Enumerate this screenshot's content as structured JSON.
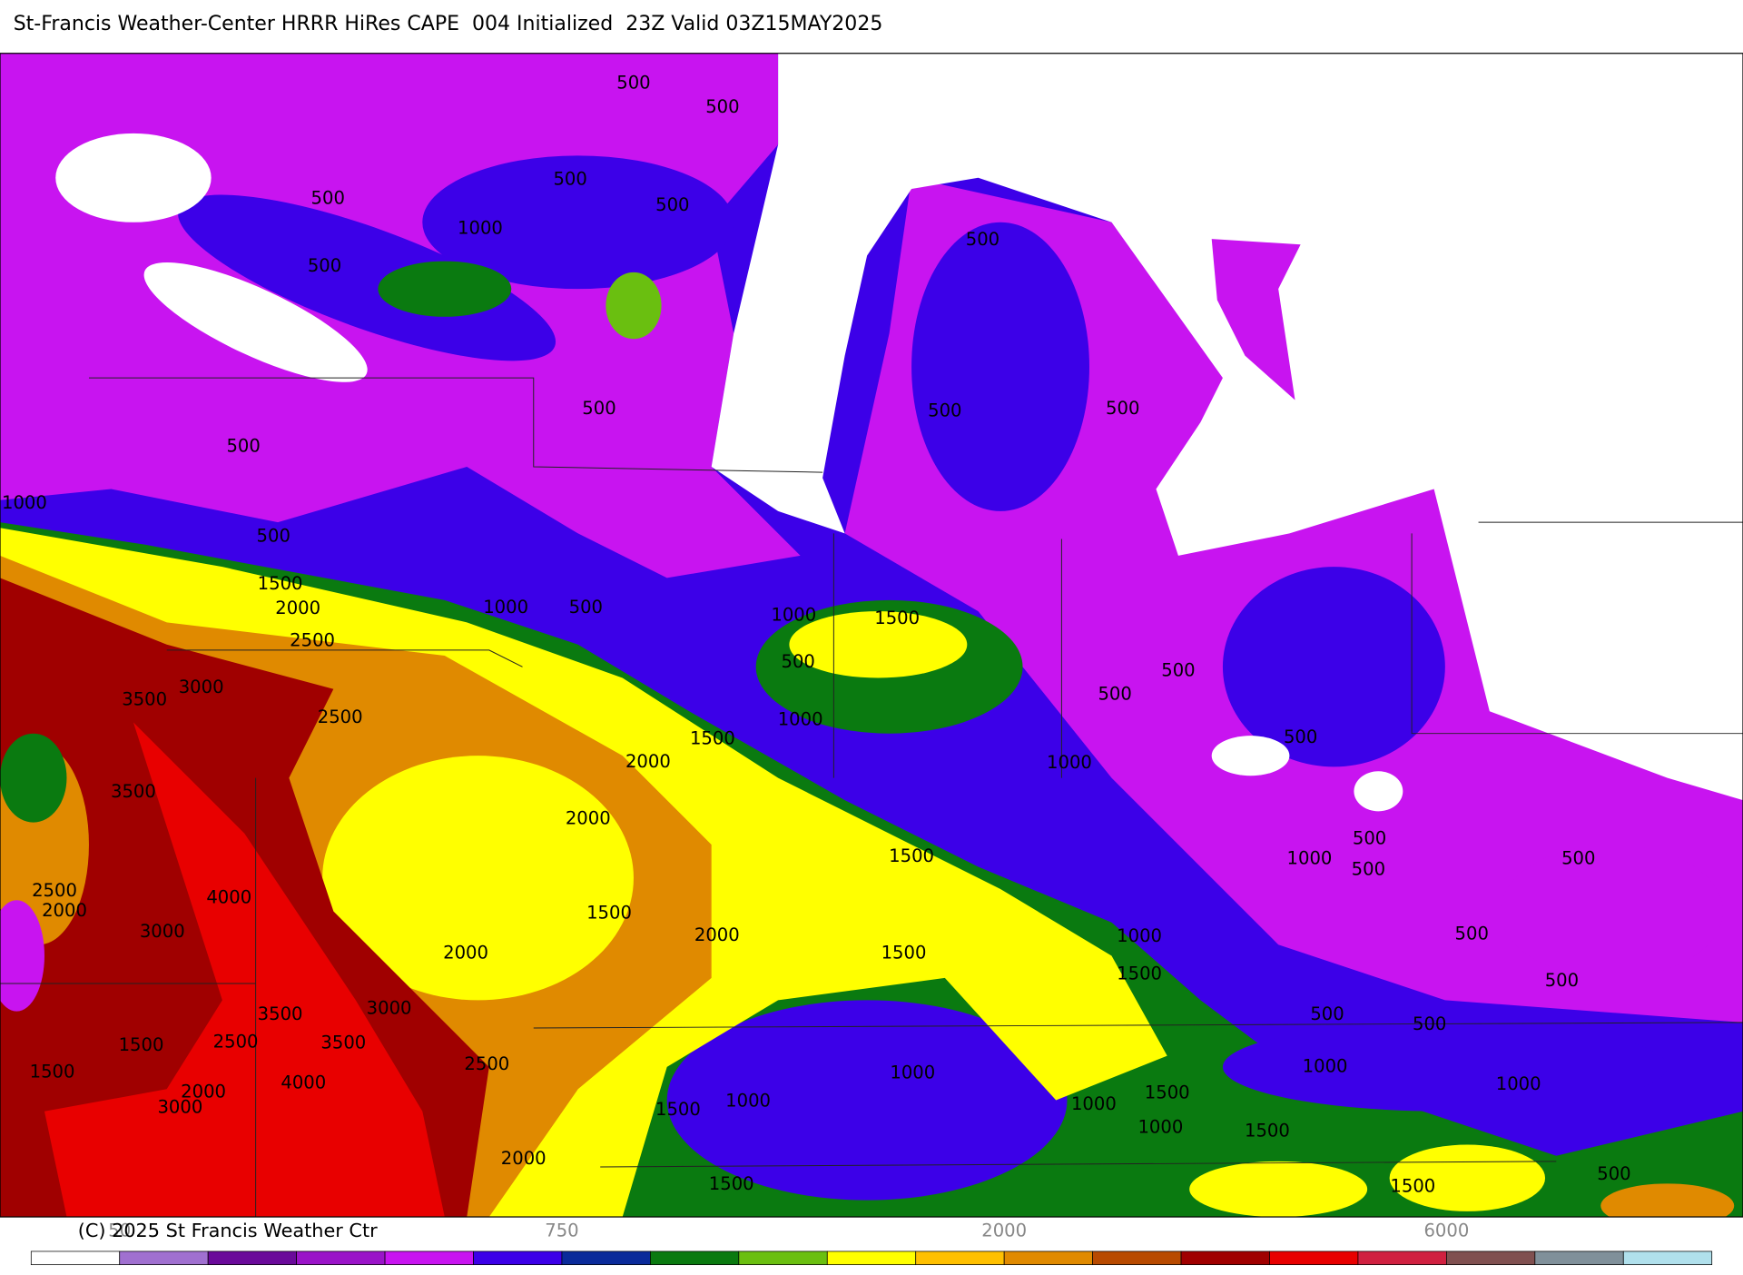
{
  "header": {
    "title": "St-Francis Weather-Center HRRR HiRes CAPE  004 Initialized  23Z Valid 03Z15MAY2025"
  },
  "map": {
    "contour_labels": [
      "500",
      "500",
      "500",
      "500",
      "500",
      "1000",
      "500",
      "500",
      "500",
      "500",
      "500",
      "500",
      "1000",
      "500",
      "1500",
      "2000",
      "2500",
      "1000",
      "500",
      "1000",
      "1500",
      "500",
      "3000",
      "3500",
      "2500",
      "1500",
      "1000",
      "2000",
      "500",
      "500",
      "1000",
      "500",
      "3500",
      "2000",
      "1500",
      "1000",
      "500",
      "500",
      "500",
      "4000",
      "2500",
      "2000",
      "3000",
      "1500",
      "2000",
      "2000",
      "1500",
      "1000",
      "500",
      "1500",
      "500",
      "3500",
      "3000",
      "500",
      "500",
      "2500",
      "3500",
      "1500",
      "1500",
      "1000",
      "1000",
      "4000",
      "2500",
      "2000",
      "3000",
      "1000",
      "1500",
      "1000",
      "1500",
      "1000",
      "1000",
      "1500",
      "2000",
      "1500",
      "1500",
      "500"
    ]
  },
  "colorbar": {
    "colors": [
      "#ffffff",
      "#a070d0",
      "#6a0a9a",
      "#9a14c8",
      "#c814f0",
      "#3c00e8",
      "#0a2a9a",
      "#0a7a10",
      "#6abf10",
      "#ffff00",
      "#ffc000",
      "#e08a00",
      "#b84a00",
      "#a00000",
      "#e80000",
      "#d02040",
      "#805050",
      "#80909a",
      "#b0e0ec"
    ],
    "labels": [
      "50",
      "750",
      "2000",
      "6000"
    ]
  },
  "footer": {
    "copyright": "(C) 2025 St Francis Weather Ctr"
  }
}
